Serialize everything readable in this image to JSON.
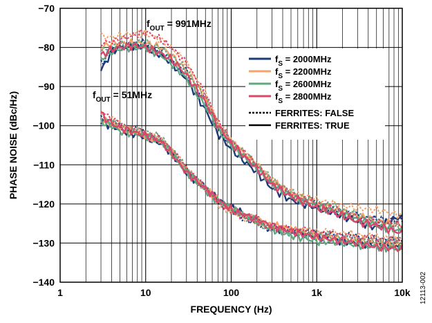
{
  "chart_data": {
    "type": "line",
    "xlabel": "FREQUENCY (Hz)",
    "ylabel": "PHASE NOISE (dBc/Hz)",
    "x_scale": "log",
    "xlim": [
      1,
      10000
    ],
    "ylim": [
      -140,
      -70
    ],
    "x_ticks": [
      {
        "value": 1,
        "label": "1"
      },
      {
        "value": 10,
        "label": "10"
      },
      {
        "value": 100,
        "label": "100"
      },
      {
        "value": 1000,
        "label": "1k"
      },
      {
        "value": 10000,
        "label": "10k"
      }
    ],
    "y_ticks": [
      -70,
      -80,
      -90,
      -100,
      -110,
      -120,
      -130,
      -140
    ],
    "grid": true,
    "legend_position": "right",
    "figure_id": "12113-002",
    "annotations": [
      {
        "base": "f",
        "sub": "OUT",
        "rest": " = 991MHz"
      },
      {
        "base": "f",
        "sub": "OUT",
        "rest": " = 51MHz"
      }
    ],
    "legend": [
      {
        "base": "f",
        "sub": "S",
        "rest": " = 2000MHz",
        "color": "#1f3a7a"
      },
      {
        "base": "f",
        "sub": "S",
        "rest": " = 2200MHz",
        "color": "#f4a36a"
      },
      {
        "base": "f",
        "sub": "S",
        "rest": " = 2600MHz",
        "color": "#5fa882"
      },
      {
        "base": "f",
        "sub": "S",
        "rest": " = 2800MHz",
        "color": "#d9476a"
      },
      {
        "base": "FERRITES: FALSE",
        "sub": "",
        "rest": "",
        "style": "dashed"
      },
      {
        "base": "FERRITES: TRUE",
        "sub": "",
        "rest": "",
        "style": "solid"
      }
    ],
    "x": [
      3,
      4,
      5,
      7,
      10,
      15,
      20,
      30,
      50,
      70,
      100,
      200,
      300,
      500,
      1000,
      2000,
      3000,
      5000,
      10000
    ],
    "series": [
      {
        "group": "991MHz",
        "fs": "2000MHz",
        "ferrites": "TRUE",
        "color": "#1f3a7a",
        "dash": false,
        "y": [
          -86,
          -81,
          -80,
          -79.5,
          -80,
          -82,
          -84,
          -88,
          -96,
          -102,
          -106,
          -112,
          -116,
          -119,
          -121,
          -123,
          -124.5,
          -126,
          -123
        ]
      },
      {
        "group": "991MHz",
        "fs": "2000MHz",
        "ferrites": "FALSE",
        "color": "#1f3a7a",
        "dash": true,
        "y": [
          -84,
          -81,
          -79.5,
          -79,
          -79,
          -81,
          -83,
          -86,
          -94,
          -101,
          -105,
          -111,
          -115,
          -118,
          -120.5,
          -122,
          -123,
          -124,
          -124
        ]
      },
      {
        "group": "991MHz",
        "fs": "2200MHz",
        "ferrites": "TRUE",
        "color": "#f4a36a",
        "dash": false,
        "y": [
          -80,
          -79,
          -79,
          -79,
          -79,
          -80,
          -82,
          -86,
          -93,
          -100,
          -104,
          -110,
          -114,
          -117.5,
          -120,
          -122,
          -123,
          -124.5,
          -125.5
        ]
      },
      {
        "group": "991MHz",
        "fs": "2200MHz",
        "ferrites": "FALSE",
        "color": "#f4a36a",
        "dash": true,
        "y": [
          -77,
          -77.5,
          -77,
          -76.5,
          -76.5,
          -78,
          -80,
          -84,
          -92,
          -99,
          -104,
          -110,
          -114,
          -117,
          -119,
          -120.5,
          -121,
          -121.5,
          -123
        ]
      },
      {
        "group": "991MHz",
        "fs": "2600MHz",
        "ferrites": "TRUE",
        "color": "#5fa882",
        "dash": false,
        "y": [
          -83,
          -81,
          -80.5,
          -80,
          -80,
          -82,
          -84,
          -88,
          -95,
          -101,
          -105,
          -111,
          -115,
          -118,
          -120.5,
          -122.5,
          -124,
          -125.5,
          -127
        ]
      },
      {
        "group": "991MHz",
        "fs": "2600MHz",
        "ferrites": "FALSE",
        "color": "#5fa882",
        "dash": true,
        "y": [
          -81,
          -80,
          -79.5,
          -79,
          -78.5,
          -80.5,
          -82,
          -86,
          -93,
          -100,
          -104,
          -110,
          -114,
          -117,
          -119.5,
          -121.5,
          -123,
          -124.5,
          -126
        ]
      },
      {
        "group": "991MHz",
        "fs": "2800MHz",
        "ferrites": "TRUE",
        "color": "#d9476a",
        "dash": false,
        "y": [
          -82,
          -80.5,
          -80,
          -79.5,
          -80,
          -81.5,
          -83,
          -87,
          -94,
          -100,
          -104.5,
          -111,
          -115,
          -118,
          -121,
          -123,
          -124.5,
          -125.5,
          -127.5
        ]
      },
      {
        "group": "991MHz",
        "fs": "2800MHz",
        "ferrites": "FALSE",
        "color": "#d9476a",
        "dash": true,
        "y": [
          -79,
          -78.5,
          -78,
          -77,
          -76,
          -78,
          -80,
          -84,
          -92,
          -99,
          -104,
          -110,
          -114.5,
          -117.5,
          -120,
          -122,
          -123.5,
          -124.5,
          -125.5
        ]
      },
      {
        "group": "51MHz",
        "fs": "2000MHz",
        "ferrites": "TRUE",
        "color": "#1f3a7a",
        "dash": false,
        "y": [
          -99,
          -100,
          -101,
          -102,
          -103,
          -104.5,
          -107,
          -112,
          -116,
          -119,
          -121,
          -124,
          -126,
          -127,
          -128.5,
          -129.5,
          -130,
          -130.5,
          -131
        ]
      },
      {
        "group": "51MHz",
        "fs": "2000MHz",
        "ferrites": "FALSE",
        "color": "#1f3a7a",
        "dash": true,
        "y": [
          -98,
          -99,
          -100,
          -101,
          -102,
          -104,
          -106,
          -111,
          -116,
          -119,
          -122,
          -125,
          -126.5,
          -127,
          -127.5,
          -128,
          -128.5,
          -129,
          -129.5
        ]
      },
      {
        "group": "51MHz",
        "fs": "2200MHz",
        "ferrites": "TRUE",
        "color": "#f4a36a",
        "dash": false,
        "y": [
          -98.5,
          -99.5,
          -100.5,
          -101.5,
          -102.5,
          -104,
          -106.5,
          -111.5,
          -116,
          -119,
          -121.5,
          -124,
          -125.5,
          -126.5,
          -128,
          -129,
          -129.5,
          -130,
          -130.5
        ]
      },
      {
        "group": "51MHz",
        "fs": "2200MHz",
        "ferrites": "FALSE",
        "color": "#f4a36a",
        "dash": true,
        "y": [
          -97.5,
          -98.5,
          -99.5,
          -101,
          -102,
          -103.5,
          -106,
          -111,
          -116.5,
          -120,
          -122,
          -124.5,
          -126,
          -126.5,
          -127,
          -127.5,
          -128,
          -128.5,
          -129
        ]
      },
      {
        "group": "51MHz",
        "fs": "2600MHz",
        "ferrites": "TRUE",
        "color": "#5fa882",
        "dash": false,
        "y": [
          -99,
          -100,
          -101.5,
          -102,
          -102.5,
          -104,
          -107,
          -112,
          -116.5,
          -119.5,
          -121,
          -124.5,
          -126.5,
          -128,
          -129.5,
          -130,
          -130.5,
          -131,
          -131.5
        ]
      },
      {
        "group": "51MHz",
        "fs": "2600MHz",
        "ferrites": "FALSE",
        "color": "#5fa882",
        "dash": true,
        "y": [
          -98,
          -99,
          -100,
          -101,
          -101.5,
          -103,
          -106,
          -111,
          -116,
          -119,
          -121.5,
          -125,
          -126.5,
          -127.5,
          -128,
          -128.5,
          -129,
          -129.5,
          -130
        ]
      },
      {
        "group": "51MHz",
        "fs": "2800MHz",
        "ferrites": "TRUE",
        "color": "#d9476a",
        "dash": false,
        "y": [
          -97,
          -99.5,
          -100.5,
          -101.5,
          -102.5,
          -104,
          -107,
          -112,
          -116,
          -119,
          -121.5,
          -124,
          -125.5,
          -127,
          -128.5,
          -129.5,
          -130,
          -131,
          -131.5
        ]
      },
      {
        "group": "51MHz",
        "fs": "2800MHz",
        "ferrites": "FALSE",
        "color": "#d9476a",
        "dash": true,
        "y": [
          -96,
          -98.5,
          -99.5,
          -101,
          -102,
          -103.5,
          -106,
          -111,
          -116,
          -119.5,
          -122,
          -124.5,
          -126,
          -126.5,
          -127.5,
          -128,
          -128.5,
          -129,
          -129.5
        ]
      }
    ]
  }
}
